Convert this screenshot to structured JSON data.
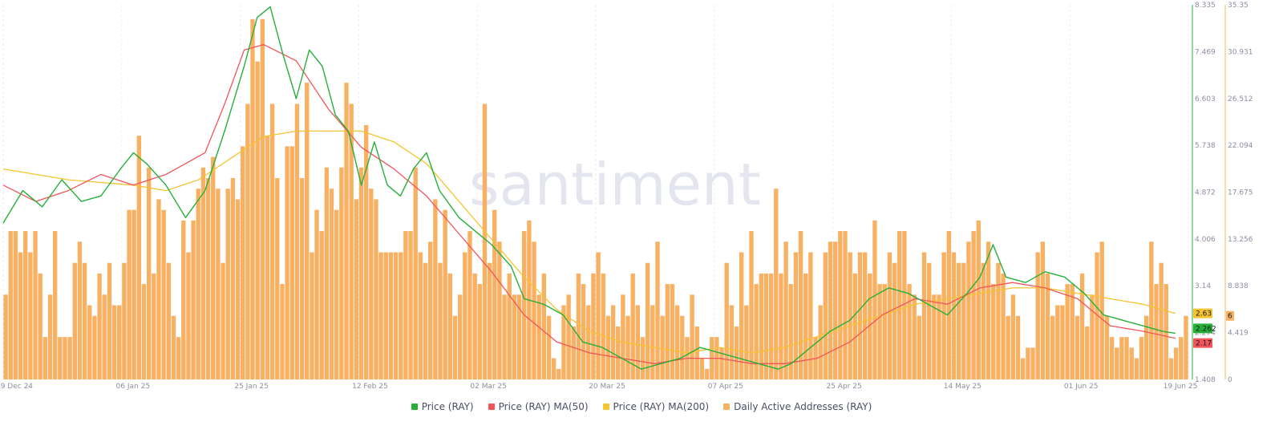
{
  "watermark": "santiment",
  "chart_data": {
    "type": "line",
    "x_range": [
      "2024-12-19",
      "2025-06-19"
    ],
    "x_ticks": [
      "19 Dec 24",
      "06 Jan 25",
      "25 Jan 25",
      "12 Feb 25",
      "02 Mar 25",
      "20 Mar 25",
      "07 Apr 25",
      "25 Apr 25",
      "14 May 25",
      "01 Jun 25",
      "19 Jun 25"
    ],
    "y_left": {
      "ticks": [
        "1.408",
        "2.274",
        "3.14",
        "4.006",
        "4.872",
        "5.738",
        "6.603",
        "7.469",
        "8.335"
      ],
      "range": [
        1.408,
        8.335
      ]
    },
    "y_right": {
      "ticks": [
        "0",
        "4.419",
        "8.838",
        "13.256",
        "17.675",
        "22.094",
        "26.512",
        "30.931",
        "35.35"
      ],
      "range": [
        0,
        35.35
      ]
    },
    "current_values": {
      "price": "2.262",
      "ma50": "2.17",
      "ma200": "2.63",
      "daa": "6"
    },
    "colors": {
      "price": "#26b03a",
      "ma50": "#f2545b",
      "ma200": "#f5c431",
      "daa": "#f8b062"
    },
    "series": [
      {
        "name": "Price (RAY)",
        "axis": "left",
        "type": "line",
        "points": [
          [
            0,
            4.3
          ],
          [
            3,
            4.9
          ],
          [
            6,
            4.6
          ],
          [
            9,
            5.1
          ],
          [
            12,
            4.7
          ],
          [
            15,
            4.8
          ],
          [
            18,
            5.3
          ],
          [
            20,
            5.6
          ],
          [
            22,
            5.4
          ],
          [
            25,
            5.0
          ],
          [
            28,
            4.4
          ],
          [
            31,
            4.9
          ],
          [
            34,
            6.0
          ],
          [
            37,
            7.2
          ],
          [
            39,
            8.1
          ],
          [
            41,
            8.3
          ],
          [
            43,
            7.4
          ],
          [
            45,
            6.6
          ],
          [
            47,
            7.5
          ],
          [
            49,
            7.2
          ],
          [
            51,
            6.3
          ],
          [
            53,
            6.0
          ],
          [
            55,
            5.0
          ],
          [
            57,
            5.8
          ],
          [
            59,
            5.0
          ],
          [
            61,
            4.8
          ],
          [
            63,
            5.3
          ],
          [
            65,
            5.6
          ],
          [
            67,
            4.9
          ],
          [
            70,
            4.4
          ],
          [
            72,
            4.2
          ],
          [
            75,
            3.9
          ],
          [
            78,
            3.5
          ],
          [
            80,
            2.9
          ],
          [
            83,
            2.8
          ],
          [
            86,
            2.6
          ],
          [
            89,
            2.1
          ],
          [
            92,
            2.0
          ],
          [
            95,
            1.8
          ],
          [
            98,
            1.6
          ],
          [
            101,
            1.7
          ],
          [
            104,
            1.8
          ],
          [
            107,
            2.0
          ],
          [
            110,
            1.9
          ],
          [
            113,
            1.8
          ],
          [
            116,
            1.7
          ],
          [
            119,
            1.6
          ],
          [
            121,
            1.7
          ],
          [
            124,
            2.0
          ],
          [
            127,
            2.3
          ],
          [
            130,
            2.5
          ],
          [
            133,
            2.9
          ],
          [
            136,
            3.1
          ],
          [
            139,
            3.0
          ],
          [
            142,
            2.8
          ],
          [
            145,
            2.6
          ],
          [
            148,
            3.0
          ],
          [
            150,
            3.3
          ],
          [
            152,
            3.9
          ],
          [
            154,
            3.3
          ],
          [
            157,
            3.2
          ],
          [
            160,
            3.4
          ],
          [
            163,
            3.3
          ],
          [
            166,
            3.0
          ],
          [
            169,
            2.6
          ],
          [
            172,
            2.5
          ],
          [
            175,
            2.4
          ],
          [
            178,
            2.3
          ],
          [
            180,
            2.262
          ]
        ]
      },
      {
        "name": "Price (RAY) MA(50)",
        "axis": "left",
        "type": "line",
        "points": [
          [
            0,
            5.0
          ],
          [
            5,
            4.7
          ],
          [
            10,
            4.9
          ],
          [
            15,
            5.2
          ],
          [
            20,
            5.0
          ],
          [
            25,
            5.2
          ],
          [
            28,
            5.4
          ],
          [
            31,
            5.6
          ],
          [
            34,
            6.5
          ],
          [
            37,
            7.5
          ],
          [
            40,
            7.6
          ],
          [
            45,
            7.3
          ],
          [
            50,
            6.4
          ],
          [
            55,
            5.7
          ],
          [
            60,
            5.3
          ],
          [
            65,
            4.8
          ],
          [
            70,
            4.1
          ],
          [
            75,
            3.4
          ],
          [
            80,
            2.6
          ],
          [
            85,
            2.1
          ],
          [
            90,
            1.9
          ],
          [
            95,
            1.8
          ],
          [
            100,
            1.7
          ],
          [
            105,
            1.8
          ],
          [
            110,
            1.8
          ],
          [
            115,
            1.7
          ],
          [
            120,
            1.7
          ],
          [
            125,
            1.8
          ],
          [
            130,
            2.1
          ],
          [
            135,
            2.6
          ],
          [
            140,
            2.9
          ],
          [
            145,
            2.8
          ],
          [
            150,
            3.1
          ],
          [
            155,
            3.2
          ],
          [
            160,
            3.1
          ],
          [
            165,
            2.9
          ],
          [
            170,
            2.4
          ],
          [
            175,
            2.3
          ],
          [
            180,
            2.17
          ]
        ]
      },
      {
        "name": "Price (RAY) MA(200)",
        "axis": "left",
        "type": "line",
        "points": [
          [
            0,
            5.3
          ],
          [
            10,
            5.1
          ],
          [
            20,
            5.0
          ],
          [
            25,
            4.9
          ],
          [
            30,
            5.1
          ],
          [
            35,
            5.5
          ],
          [
            40,
            5.9
          ],
          [
            45,
            6.0
          ],
          [
            50,
            6.0
          ],
          [
            55,
            6.0
          ],
          [
            60,
            5.8
          ],
          [
            65,
            5.4
          ],
          [
            70,
            4.7
          ],
          [
            75,
            4.0
          ],
          [
            80,
            3.3
          ],
          [
            85,
            2.7
          ],
          [
            90,
            2.3
          ],
          [
            95,
            2.1
          ],
          [
            100,
            2.0
          ],
          [
            105,
            1.9
          ],
          [
            110,
            2.0
          ],
          [
            115,
            1.9
          ],
          [
            120,
            2.0
          ],
          [
            125,
            2.2
          ],
          [
            130,
            2.4
          ],
          [
            135,
            2.6
          ],
          [
            140,
            2.8
          ],
          [
            145,
            2.9
          ],
          [
            150,
            3.0
          ],
          [
            155,
            3.1
          ],
          [
            160,
            3.1
          ],
          [
            165,
            3.0
          ],
          [
            170,
            2.9
          ],
          [
            175,
            2.8
          ],
          [
            180,
            2.63
          ]
        ]
      },
      {
        "name": "Daily Active Addresses (RAY)",
        "axis": "right",
        "type": "bar",
        "values": [
          8,
          14,
          14,
          12,
          14,
          12,
          14,
          10,
          4,
          8,
          14,
          4,
          4,
          4,
          11,
          13,
          11,
          7,
          6,
          10,
          8,
          11,
          7,
          7,
          11,
          16,
          16,
          23,
          9,
          20,
          10,
          17,
          16,
          11,
          6,
          4,
          15,
          12,
          15,
          18,
          20,
          19,
          21,
          18,
          11,
          18,
          19,
          17,
          22,
          26,
          34,
          30,
          34,
          23,
          26,
          19,
          9,
          22,
          22,
          26,
          19,
          28,
          12,
          16,
          14,
          20,
          18,
          16,
          20,
          28,
          26,
          17,
          20,
          24,
          18,
          17,
          12,
          12,
          12,
          12,
          12,
          14,
          14,
          20,
          12,
          11,
          13,
          17,
          11,
          16,
          10,
          6,
          8,
          12,
          14,
          10,
          9,
          26,
          11,
          16,
          13,
          8,
          10,
          8,
          8,
          14,
          15,
          13,
          8,
          10,
          6,
          2,
          1,
          7,
          8,
          5,
          10,
          9,
          7,
          10,
          12,
          10,
          6,
          7,
          5,
          8,
          6,
          10,
          7,
          4,
          11,
          7,
          13,
          6,
          9,
          9,
          7,
          6,
          4,
          8,
          5,
          2,
          1,
          4,
          4,
          3,
          11,
          7,
          5,
          12,
          7,
          14,
          9,
          10,
          10,
          10,
          18,
          10,
          13,
          9,
          12,
          14,
          10,
          12,
          4,
          7,
          12,
          13,
          13,
          14,
          14,
          12,
          10,
          12,
          12,
          10,
          15,
          9,
          9,
          12,
          11,
          14,
          14,
          9,
          8,
          6,
          12,
          11,
          8,
          8,
          12,
          14,
          12,
          11,
          11,
          13,
          14,
          15,
          11,
          13,
          9,
          11,
          10,
          6,
          8,
          6,
          2,
          3,
          3,
          12,
          13,
          10,
          6,
          7,
          7,
          9,
          9,
          6,
          10,
          5,
          8,
          12,
          13,
          6,
          4,
          3,
          4,
          4,
          3,
          2,
          4,
          6,
          13,
          9,
          11,
          9,
          2,
          3,
          4,
          6
        ]
      }
    ],
    "legend": [
      "Price (RAY)",
      "Price (RAY) MA(50)",
      "Price (RAY) MA(200)",
      "Daily Active Addresses (RAY)"
    ]
  }
}
